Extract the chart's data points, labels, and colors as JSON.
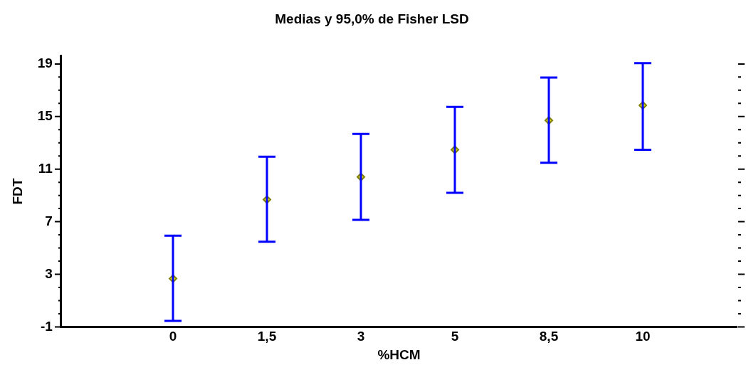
{
  "chart_data": {
    "type": "scatter",
    "title": "Medias y 95,0% de Fisher LSD",
    "xlabel": "%HCM",
    "ylabel": "FDT",
    "categories": [
      "0",
      "1,5",
      "3",
      "5",
      "8,5",
      "10"
    ],
    "series": [
      {
        "color": "#808000",
        "values": [
          2.67,
          8.68,
          10.4,
          12.47,
          14.7,
          15.85
        ],
        "errors": [
          [
            -0.54,
            5.93
          ],
          [
            5.48,
            11.95
          ],
          [
            7.14,
            13.67
          ],
          [
            9.2,
            15.73
          ],
          [
            11.49,
            17.97
          ],
          [
            12.47,
            19.06
          ]
        ]
      }
    ],
    "ylim": [
      -1,
      19.6
    ],
    "yticks": [
      -1,
      {
        "value": 0,
        "label": null
      },
      {
        "value": 1,
        "label": null
      },
      {
        "value": 2,
        "label": null
      },
      3,
      {
        "value": 4,
        "label": null
      },
      {
        "value": 5,
        "label": null
      },
      {
        "value": 6,
        "label": null
      },
      7,
      {
        "value": 8,
        "label": null
      },
      {
        "value": 9,
        "label": null
      },
      {
        "value": 10,
        "label": null
      },
      11,
      {
        "value": 12,
        "label": null
      },
      {
        "value": 13,
        "label": null
      },
      {
        "value": 14,
        "label": null
      },
      15,
      {
        "value": 16,
        "label": null
      },
      {
        "value": 17,
        "label": null
      },
      {
        "value": 18,
        "label": null
      },
      19
    ],
    "marker": "diamond",
    "grid": false,
    "legend": false
  }
}
